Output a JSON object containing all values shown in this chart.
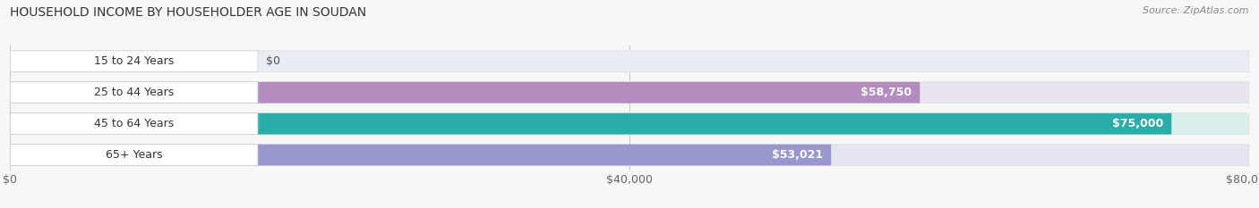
{
  "title": "HOUSEHOLD INCOME BY HOUSEHOLDER AGE IN SOUDAN",
  "source": "Source: ZipAtlas.com",
  "categories": [
    "15 to 24 Years",
    "25 to 44 Years",
    "45 to 64 Years",
    "65+ Years"
  ],
  "values": [
    0,
    58750,
    75000,
    53021
  ],
  "labels": [
    "$0",
    "$58,750",
    "$75,000",
    "$53,021"
  ],
  "bar_colors": [
    "#a8cce4",
    "#b48dc0",
    "#2aada8",
    "#9898cc"
  ],
  "bg_colors": [
    "#eaeef4",
    "#eae4f0",
    "#daf0ee",
    "#e4e4f2"
  ],
  "xlim": [
    0,
    80000
  ],
  "xticks": [
    0,
    40000,
    80000
  ],
  "xticklabels": [
    "$0",
    "$40,000",
    "$80,000"
  ],
  "title_fontsize": 10,
  "source_fontsize": 8,
  "label_fontsize": 9,
  "tick_fontsize": 9,
  "bar_height": 0.68,
  "background_color": "#f7f7f7"
}
